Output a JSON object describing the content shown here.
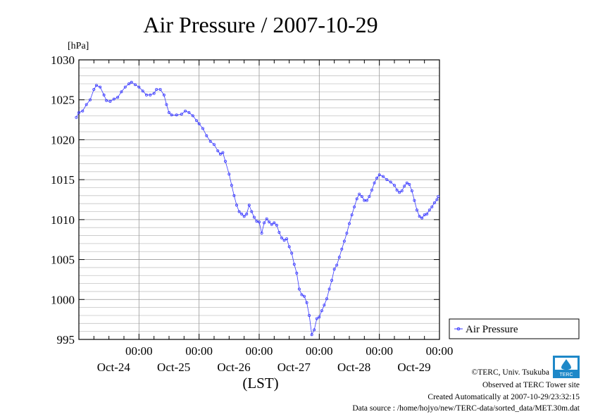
{
  "chart_data": {
    "type": "line",
    "title": "Air Pressure / 2007-10-29",
    "ylabel": "[hPa]",
    "xlabel": "(LST)",
    "ylim": [
      995,
      1030
    ],
    "yticks": [
      995,
      1000,
      1005,
      1010,
      1015,
      1020,
      1025,
      1030
    ],
    "xlim": [
      "2007-10-24T00:00",
      "2007-10-30T00:00"
    ],
    "xticks": [
      {
        "time": "00:00",
        "date": "Oct-24"
      },
      {
        "time": "00:00",
        "date": "Oct-25"
      },
      {
        "time": "00:00",
        "date": "Oct-26"
      },
      {
        "time": "00:00",
        "date": "Oct-27"
      },
      {
        "time": "00:00",
        "date": "Oct-28"
      },
      {
        "time": "00:00",
        "date": "Oct-29"
      }
    ],
    "grid": true,
    "legend_position": "right",
    "series": [
      {
        "name": "Air Pressure",
        "color": "#3b3bff",
        "marker": "circle",
        "points": [
          [
            "2007-10-23T23:00",
            1022.8
          ],
          [
            "2007-10-24T00:00",
            1023.4
          ],
          [
            "2007-10-24T01:30",
            1023.6
          ],
          [
            "2007-10-24T03:00",
            1024.4
          ],
          [
            "2007-10-24T04:30",
            1025.0
          ],
          [
            "2007-10-24T06:00",
            1026.3
          ],
          [
            "2007-10-24T07:00",
            1026.8
          ],
          [
            "2007-10-24T08:30",
            1026.6
          ],
          [
            "2007-10-24T10:00",
            1025.6
          ],
          [
            "2007-10-24T11:00",
            1024.9
          ],
          [
            "2007-10-24T12:30",
            1024.8
          ],
          [
            "2007-10-24T14:00",
            1025.1
          ],
          [
            "2007-10-24T15:30",
            1025.3
          ],
          [
            "2007-10-24T17:00",
            1026.0
          ],
          [
            "2007-10-24T18:30",
            1026.6
          ],
          [
            "2007-10-24T20:00",
            1027.0
          ],
          [
            "2007-10-24T21:00",
            1027.2
          ],
          [
            "2007-10-24T22:30",
            1026.9
          ],
          [
            "2007-10-25T00:00",
            1026.6
          ],
          [
            "2007-10-25T01:30",
            1026.1
          ],
          [
            "2007-10-25T03:00",
            1025.6
          ],
          [
            "2007-10-25T04:30",
            1025.6
          ],
          [
            "2007-10-25T06:00",
            1025.8
          ],
          [
            "2007-10-25T07:00",
            1026.3
          ],
          [
            "2007-10-25T08:30",
            1026.3
          ],
          [
            "2007-10-25T10:00",
            1025.6
          ],
          [
            "2007-10-25T11:00",
            1024.4
          ],
          [
            "2007-10-25T12:00",
            1023.4
          ],
          [
            "2007-10-25T13:00",
            1023.1
          ],
          [
            "2007-10-25T15:00",
            1023.1
          ],
          [
            "2007-10-25T17:00",
            1023.2
          ],
          [
            "2007-10-25T18:30",
            1023.6
          ],
          [
            "2007-10-25T20:00",
            1023.4
          ],
          [
            "2007-10-25T21:30",
            1023.0
          ],
          [
            "2007-10-25T23:00",
            1022.4
          ],
          [
            "2007-10-26T00:00",
            1022.0
          ],
          [
            "2007-10-26T01:30",
            1021.4
          ],
          [
            "2007-10-26T03:00",
            1020.5
          ],
          [
            "2007-10-26T04:30",
            1019.8
          ],
          [
            "2007-10-26T06:00",
            1019.4
          ],
          [
            "2007-10-26T07:30",
            1018.6
          ],
          [
            "2007-10-26T08:30",
            1018.2
          ],
          [
            "2007-10-26T09:30",
            1018.4
          ],
          [
            "2007-10-26T10:30",
            1017.3
          ],
          [
            "2007-10-26T12:00",
            1015.7
          ],
          [
            "2007-10-26T13:00",
            1014.3
          ],
          [
            "2007-10-26T14:00",
            1013.0
          ],
          [
            "2007-10-26T15:00",
            1011.8
          ],
          [
            "2007-10-26T16:00",
            1011.0
          ],
          [
            "2007-10-26T17:00",
            1010.7
          ],
          [
            "2007-10-26T18:00",
            1010.4
          ],
          [
            "2007-10-26T19:00",
            1010.7
          ],
          [
            "2007-10-26T20:00",
            1011.8
          ],
          [
            "2007-10-26T21:00",
            1011.0
          ],
          [
            "2007-10-26T22:00",
            1010.3
          ],
          [
            "2007-10-26T23:00",
            1009.8
          ],
          [
            "2007-10-27T00:00",
            1009.7
          ],
          [
            "2007-10-27T01:00",
            1008.3
          ],
          [
            "2007-10-27T02:00",
            1009.6
          ],
          [
            "2007-10-27T03:00",
            1010.1
          ],
          [
            "2007-10-27T04:00",
            1009.7
          ],
          [
            "2007-10-27T05:00",
            1009.4
          ],
          [
            "2007-10-27T06:00",
            1009.6
          ],
          [
            "2007-10-27T07:00",
            1009.3
          ],
          [
            "2007-10-27T08:00",
            1008.4
          ],
          [
            "2007-10-27T09:00",
            1007.7
          ],
          [
            "2007-10-27T10:00",
            1007.4
          ],
          [
            "2007-10-27T11:00",
            1007.6
          ],
          [
            "2007-10-27T12:00",
            1006.6
          ],
          [
            "2007-10-27T13:00",
            1005.8
          ],
          [
            "2007-10-27T14:00",
            1004.4
          ],
          [
            "2007-10-27T15:00",
            1003.3
          ],
          [
            "2007-10-27T16:00",
            1001.3
          ],
          [
            "2007-10-27T17:00",
            1000.6
          ],
          [
            "2007-10-27T18:00",
            1000.4
          ],
          [
            "2007-10-27T19:00",
            999.6
          ],
          [
            "2007-10-27T20:00",
            998.0
          ],
          [
            "2007-10-27T21:00",
            995.6
          ],
          [
            "2007-10-27T22:00",
            996.2
          ],
          [
            "2007-10-27T23:00",
            997.6
          ],
          [
            "2007-10-28T00:00",
            997.8
          ],
          [
            "2007-10-28T01:00",
            998.6
          ],
          [
            "2007-10-28T02:00",
            999.3
          ],
          [
            "2007-10-28T03:00",
            1000.1
          ],
          [
            "2007-10-28T04:00",
            1001.3
          ],
          [
            "2007-10-28T05:00",
            1002.4
          ],
          [
            "2007-10-28T06:00",
            1003.8
          ],
          [
            "2007-10-28T07:00",
            1004.3
          ],
          [
            "2007-10-28T08:00",
            1005.3
          ],
          [
            "2007-10-28T09:00",
            1006.3
          ],
          [
            "2007-10-28T10:00",
            1007.3
          ],
          [
            "2007-10-28T11:00",
            1008.3
          ],
          [
            "2007-10-28T12:00",
            1009.5
          ],
          [
            "2007-10-28T13:00",
            1010.6
          ],
          [
            "2007-10-28T14:00",
            1011.6
          ],
          [
            "2007-10-28T15:00",
            1012.6
          ],
          [
            "2007-10-28T16:00",
            1013.2
          ],
          [
            "2007-10-28T17:00",
            1012.9
          ],
          [
            "2007-10-28T18:00",
            1012.4
          ],
          [
            "2007-10-28T19:00",
            1012.4
          ],
          [
            "2007-10-28T20:00",
            1012.9
          ],
          [
            "2007-10-28T21:00",
            1013.7
          ],
          [
            "2007-10-28T22:00",
            1014.6
          ],
          [
            "2007-10-28T23:00",
            1015.2
          ],
          [
            "2007-10-29T00:00",
            1015.6
          ],
          [
            "2007-10-29T01:30",
            1015.4
          ],
          [
            "2007-10-29T03:00",
            1015.0
          ],
          [
            "2007-10-29T04:30",
            1014.7
          ],
          [
            "2007-10-29T06:00",
            1014.3
          ],
          [
            "2007-10-29T07:00",
            1013.7
          ],
          [
            "2007-10-29T08:00",
            1013.4
          ],
          [
            "2007-10-29T09:00",
            1013.6
          ],
          [
            "2007-10-29T10:00",
            1014.2
          ],
          [
            "2007-10-29T11:00",
            1014.6
          ],
          [
            "2007-10-29T12:00",
            1014.4
          ],
          [
            "2007-10-29T13:00",
            1013.6
          ],
          [
            "2007-10-29T14:00",
            1012.4
          ],
          [
            "2007-10-29T15:00",
            1011.2
          ],
          [
            "2007-10-29T16:00",
            1010.4
          ],
          [
            "2007-10-29T17:00",
            1010.2
          ],
          [
            "2007-10-29T18:00",
            1010.6
          ],
          [
            "2007-10-29T19:00",
            1010.7
          ],
          [
            "2007-10-29T20:00",
            1011.2
          ],
          [
            "2007-10-29T21:00",
            1011.6
          ],
          [
            "2007-10-29T22:00",
            1012.1
          ],
          [
            "2007-10-29T23:00",
            1012.5
          ],
          [
            "2007-10-29T23:30",
            1012.9
          ]
        ]
      }
    ]
  },
  "credits": {
    "copyright": "©TERC, Univ. Tsukuba",
    "observed": "Observed at TERC Tower site",
    "created": "Created Automatically at 2007-10-29/23:32:15",
    "source": "Data source : /home/hojyo/new/TERC-data/sorted_data/MET.30m.dat"
  },
  "logo": {
    "text": "TERC"
  }
}
